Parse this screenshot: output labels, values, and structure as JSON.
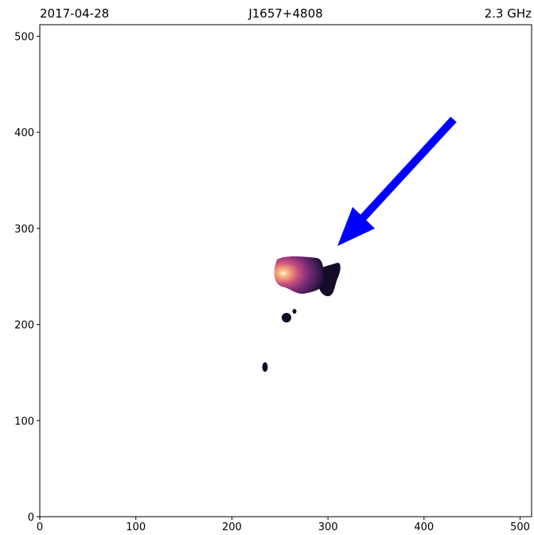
{
  "chart_data": {
    "type": "image",
    "title_left": "2017-04-28",
    "title": "J1657+4808",
    "title_right": "2.3 GHz",
    "xlim": [
      0,
      512
    ],
    "ylim": [
      0,
      512
    ],
    "xticks": [
      0,
      100,
      200,
      300,
      400,
      500
    ],
    "yticks": [
      0,
      100,
      200,
      300,
      400,
      500
    ]
  }
}
